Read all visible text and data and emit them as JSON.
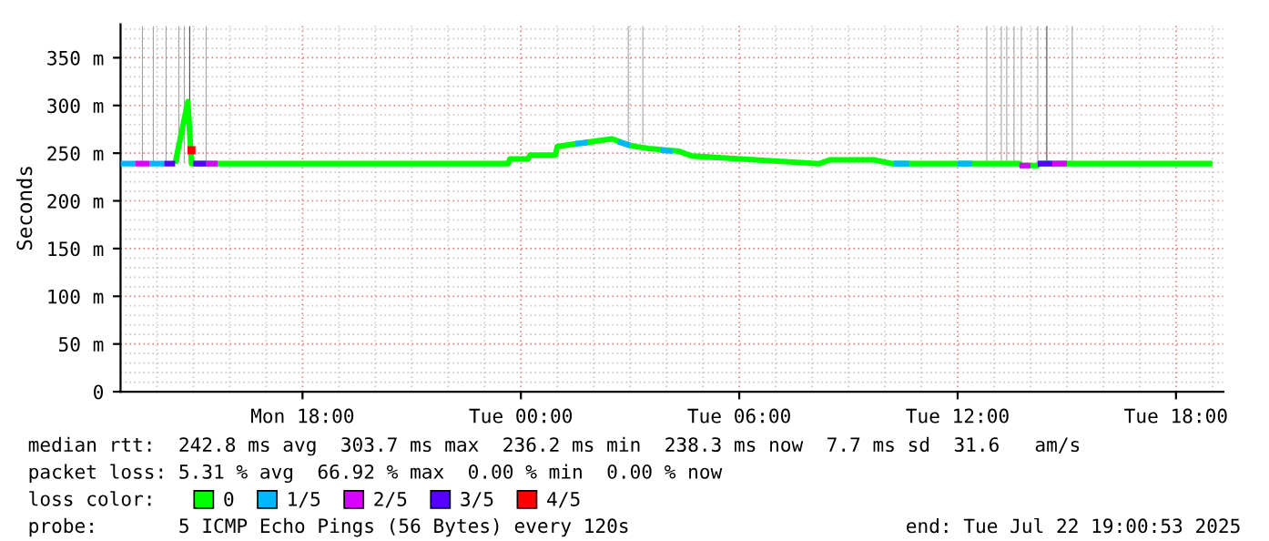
{
  "chart_data": {
    "type": "line",
    "ylabel": "Seconds",
    "legend_title": "loss color:",
    "legend": "bottom",
    "grid": true,
    "xlim": [
      "2025-07-21T13:00",
      "2025-07-22T19:18"
    ],
    "xticks": [
      {
        "value": "2025-07-21T18:00",
        "label": "Mon 18:00"
      },
      {
        "value": "2025-07-22T00:00",
        "label": "Tue 00:00"
      },
      {
        "value": "2025-07-22T06:00",
        "label": "Tue 06:00"
      },
      {
        "value": "2025-07-22T12:00",
        "label": "Tue 12:00"
      },
      {
        "value": "2025-07-22T18:00",
        "label": "Tue 18:00"
      }
    ],
    "ylim": [
      0,
      385
    ],
    "yticks": [
      0,
      {
        "value": 50,
        "label": "50 m"
      },
      {
        "value": 100,
        "label": "100 m"
      },
      {
        "value": 150,
        "label": "150 m"
      },
      {
        "value": 200,
        "label": "200 m"
      },
      {
        "value": 250,
        "label": "250 m"
      },
      {
        "value": 300,
        "label": "300 m"
      },
      {
        "value": 350,
        "label": "350 m"
      }
    ],
    "series": [
      {
        "type": "bar",
        "colors": [
          "#a0a0a0",
          "#a0a0a0",
          "#a0a0a0",
          "#a0a0a0",
          "#a0a0a0",
          "#404040",
          "#a0a0a0",
          "#a0a0a0",
          "#a0a0a0",
          "#a0a0a0",
          "#a0a0a0",
          "#a0a0a0",
          "#a0a0a0",
          "#a0a0a0",
          "#a0a0a0",
          "#404040",
          "#a0a0a0"
        ],
        "x": [
          "2025-07-21T13:36",
          "2025-07-21T13:54",
          "2025-07-21T14:15",
          "2025-07-21T14:36",
          "2025-07-21T14:45",
          "2025-07-21T14:54",
          "2025-07-21T15:21",
          "2025-07-22T02:57",
          "2025-07-22T03:21",
          "2025-07-22T12:48",
          "2025-07-22T13:12",
          "2025-07-22T13:21",
          "2025-07-22T13:33",
          "2025-07-22T13:45",
          "2025-07-22T14:12",
          "2025-07-22T14:27",
          "2025-07-22T15:09"
        ],
        "base": [
          240,
          240,
          240,
          240,
          240,
          240,
          240,
          260,
          260,
          240,
          240,
          240,
          240,
          240,
          240,
          240,
          240
        ],
        "values": [
          143,
          143,
          143,
          143,
          143,
          143,
          143,
          123,
          123,
          143,
          143,
          143,
          143,
          143,
          143,
          143,
          143
        ]
      },
      {
        "name": "0",
        "color": "#00ff00",
        "x": [
          "2025-07-21T14:30",
          "2025-07-21T14:51",
          "2025-07-21T14:57",
          "2025-07-21T23:39",
          "2025-07-21T23:42",
          "2025-07-22T00:12",
          "2025-07-22T00:15",
          "2025-07-22T00:57",
          "2025-07-22T01:00",
          "2025-07-22T01:45",
          "2025-07-22T02:30",
          "2025-07-22T03:00",
          "2025-07-22T03:30",
          "2025-07-22T04:21",
          "2025-07-22T04:42",
          "2025-07-22T06:03",
          "2025-07-22T08:12",
          "2025-07-22T08:30",
          "2025-07-22T09:42",
          "2025-07-22T10:12",
          "2025-07-22T13:42",
          "2025-07-22T13:45",
          "2025-07-22T14:12",
          "2025-07-22T14:15",
          "2025-07-22T19:00"
        ],
        "values": [
          239,
          304,
          239,
          239,
          244,
          244,
          248,
          248,
          257,
          261,
          265,
          258,
          255,
          252,
          247,
          244,
          239,
          243,
          243,
          239,
          239,
          237,
          237,
          239,
          239
        ]
      },
      {
        "name": "1/5",
        "color": "#00b7ff",
        "x": [
          "2025-07-21T13:00",
          "2025-07-21T13:24",
          "2025-07-21T13:36",
          "2025-07-21T13:48",
          "2025-07-21T14:12",
          "2025-07-21T14:20",
          "2025-07-22T01:30",
          "2025-07-22T01:50",
          "2025-07-22T01:51",
          "2025-07-22T02:40",
          "2025-07-22T03:00",
          "2025-07-22T03:01",
          "2025-07-22T03:50",
          "2025-07-22T04:10",
          "2025-07-22T04:11",
          "2025-07-22T10:15",
          "2025-07-22T10:40",
          "2025-07-22T10:41",
          "2025-07-22T12:00",
          "2025-07-22T12:24"
        ],
        "values": [
          239,
          239,
          null,
          239,
          239,
          null,
          260,
          261,
          null,
          262,
          258,
          null,
          253,
          252,
          null,
          239,
          239,
          null,
          239,
          239
        ]
      },
      {
        "name": "2/5",
        "color": "#d800ff",
        "x": [
          "2025-07-21T13:24",
          "2025-07-21T13:48",
          "2025-07-21T14:00",
          "2025-07-21T15:21",
          "2025-07-21T15:40",
          "2025-07-21T15:50",
          "2025-07-22T13:42",
          "2025-07-22T14:00",
          "2025-07-22T14:05",
          "2025-07-22T14:36",
          "2025-07-22T15:00"
        ],
        "values": [
          239,
          239,
          null,
          239,
          239,
          null,
          237,
          237,
          null,
          239,
          239
        ]
      },
      {
        "name": "3/5",
        "color": "#5500ff",
        "x": [
          "2025-07-21T14:12",
          "2025-07-21T14:30",
          "2025-07-21T14:40",
          "2025-07-21T15:00",
          "2025-07-21T15:21",
          "2025-07-21T15:30",
          "2025-07-22T14:12",
          "2025-07-22T14:36"
        ],
        "values": [
          239,
          239,
          null,
          239,
          239,
          null,
          239,
          239
        ]
      },
      {
        "name": "4/5",
        "type": "scatter",
        "marker": "square",
        "color": "#ff0000",
        "x": [
          "2025-07-21T14:57"
        ],
        "values": [
          253
        ]
      }
    ],
    "annotations": [
      "median rtt:  242.8 ms avg  303.7 ms max  236.2 ms min  238.3 ms now  7.7 ms sd  31.6   am/s",
      "packet loss: 5.31 % avg  66.92 % max  0.00 % min  0.00 % now",
      "probe:       5 ICMP Echo Pings (56 Bytes) every 120s",
      "end: Tue Jul 22 19:00:53 2025"
    ]
  }
}
